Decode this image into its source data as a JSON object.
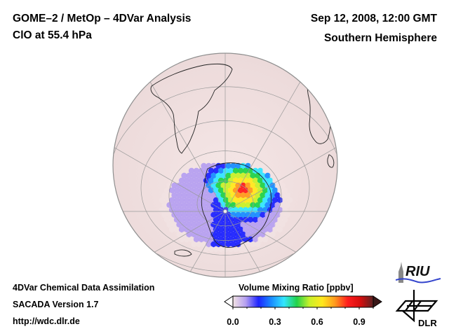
{
  "header": {
    "title": "GOME–2 / MetOp – 4DVar Analysis",
    "subtitle": "ClO at 55.4 hPa",
    "date": "Sep 12, 2008, 12:00 GMT",
    "hemisphere": "Southern Hemisphere"
  },
  "footer": {
    "line1": "4DVar Chemical Data Assimilation",
    "line2": "SACADA Version 1.7",
    "line3": "http://wdc.dlr.de"
  },
  "map": {
    "projection": "orthographic",
    "region": "Southern Hemisphere",
    "species": "ClO",
    "pressure_level": "55.4 hPa",
    "background_color": "#f3e3e3",
    "features": [
      "South America",
      "Africa",
      "Antarctica",
      "Australia"
    ],
    "anomaly": "enhanced ClO over Antarctica, peak near 0.9 ppbv"
  },
  "colorbar": {
    "title": "Volume Mixing Ratio [ppbv]",
    "ticks": [
      "0.0",
      "0.3",
      "0.6",
      "0.9"
    ],
    "min": 0.0,
    "max": 1.0,
    "extend": "both",
    "colors": [
      "#f3e3e3",
      "#b6a0f0",
      "#1e24ff",
      "#1a8cff",
      "#33e6ff",
      "#22d24a",
      "#c8f02a",
      "#ffe81e",
      "#ff9a1e",
      "#ff1e1e",
      "#d60e0e",
      "#5a2222"
    ]
  },
  "logos": {
    "riu": "RIU",
    "dlr": "DLR"
  }
}
